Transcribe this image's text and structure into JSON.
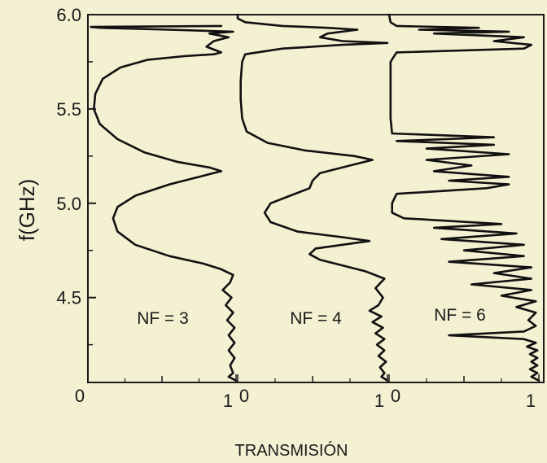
{
  "chart_data": {
    "type": "line",
    "ylabel": "f(GHz)",
    "xlabel": "TRANSMISIÓN",
    "ylim": [
      4.05,
      6.0
    ],
    "yticks": [
      {
        "value": 4.5,
        "label": "4.5"
      },
      {
        "value": 5.0,
        "label": "5.0"
      },
      {
        "value": 5.5,
        "label": "5.5"
      },
      {
        "value": 6.0,
        "label": "6.0"
      }
    ],
    "grid": false,
    "colors": {
      "background": "#f4f0d2",
      "line": "#111111"
    },
    "panels": [
      {
        "label": "NF = 3",
        "xlim": [
          0,
          1
        ],
        "xtick_labels": [
          "0",
          "1"
        ],
        "series": [
          {
            "points": [
              [
                1.0,
                4.06
              ],
              [
                0.95,
                4.08
              ],
              [
                0.98,
                4.1
              ],
              [
                0.96,
                4.14
              ],
              [
                0.99,
                4.18
              ],
              [
                0.95,
                4.22
              ],
              [
                0.99,
                4.26
              ],
              [
                0.95,
                4.3
              ],
              [
                0.99,
                4.34
              ],
              [
                0.94,
                4.38
              ],
              [
                0.98,
                4.42
              ],
              [
                0.93,
                4.46
              ],
              [
                0.97,
                4.5
              ],
              [
                0.91,
                4.54
              ],
              [
                0.96,
                4.58
              ],
              [
                0.98,
                4.62
              ],
              [
                0.9,
                4.65
              ],
              [
                0.78,
                4.68
              ],
              [
                0.55,
                4.72
              ],
              [
                0.32,
                4.78
              ],
              [
                0.2,
                4.85
              ],
              [
                0.17,
                4.92
              ],
              [
                0.2,
                4.98
              ],
              [
                0.32,
                5.04
              ],
              [
                0.55,
                5.1
              ],
              [
                0.8,
                5.15
              ],
              [
                0.9,
                5.17
              ],
              [
                0.82,
                5.19
              ],
              [
                0.6,
                5.22
              ],
              [
                0.38,
                5.27
              ],
              [
                0.2,
                5.34
              ],
              [
                0.08,
                5.42
              ],
              [
                0.04,
                5.5
              ],
              [
                0.05,
                5.58
              ],
              [
                0.1,
                5.66
              ],
              [
                0.22,
                5.72
              ],
              [
                0.4,
                5.76
              ],
              [
                0.65,
                5.78
              ],
              [
                0.85,
                5.79
              ],
              [
                0.9,
                5.8
              ],
              [
                0.8,
                5.83
              ],
              [
                0.85,
                5.86
              ],
              [
                0.95,
                5.88
              ],
              [
                0.82,
                5.9
              ],
              [
                0.98,
                5.91
              ],
              [
                0.55,
                5.92
              ],
              [
                0.08,
                5.93
              ],
              [
                0.02,
                5.935
              ],
              [
                0.9,
                5.94
              ]
            ]
          }
        ]
      },
      {
        "label": "NF = 4",
        "xlim": [
          0,
          1
        ],
        "xtick_labels": [
          "0",
          "1"
        ],
        "series": [
          {
            "points": [
              [
                1.0,
                4.06
              ],
              [
                0.96,
                4.08
              ],
              [
                0.98,
                4.1
              ],
              [
                0.95,
                4.13
              ],
              [
                0.99,
                4.16
              ],
              [
                0.94,
                4.19
              ],
              [
                0.98,
                4.22
              ],
              [
                0.93,
                4.25
              ],
              [
                0.98,
                4.28
              ],
              [
                0.92,
                4.31
              ],
              [
                0.97,
                4.34
              ],
              [
                0.9,
                4.37
              ],
              [
                0.96,
                4.4
              ],
              [
                0.88,
                4.43
              ],
              [
                0.94,
                4.46
              ],
              [
                0.97,
                4.5
              ],
              [
                0.92,
                4.55
              ],
              [
                0.98,
                4.6
              ],
              [
                0.85,
                4.64
              ],
              [
                0.7,
                4.67
              ],
              [
                0.55,
                4.7
              ],
              [
                0.48,
                4.73
              ],
              [
                0.52,
                4.76
              ],
              [
                0.7,
                4.78
              ],
              [
                0.88,
                4.8
              ],
              [
                0.7,
                4.82
              ],
              [
                0.4,
                4.85
              ],
              [
                0.22,
                4.9
              ],
              [
                0.18,
                4.95
              ],
              [
                0.22,
                5.0
              ],
              [
                0.35,
                5.04
              ],
              [
                0.48,
                5.08
              ],
              [
                0.5,
                5.12
              ],
              [
                0.55,
                5.16
              ],
              [
                0.75,
                5.2
              ],
              [
                0.9,
                5.23
              ],
              [
                0.78,
                5.25
              ],
              [
                0.45,
                5.28
              ],
              [
                0.2,
                5.32
              ],
              [
                0.06,
                5.38
              ],
              [
                0.03,
                5.45
              ],
              [
                0.02,
                5.55
              ],
              [
                0.02,
                5.65
              ],
              [
                0.03,
                5.75
              ],
              [
                0.05,
                5.79
              ],
              [
                0.3,
                5.82
              ],
              [
                0.7,
                5.84
              ],
              [
                1.0,
                5.85
              ],
              [
                0.7,
                5.86
              ],
              [
                0.55,
                5.88
              ],
              [
                0.6,
                5.9
              ],
              [
                0.8,
                5.92
              ],
              [
                0.6,
                5.93
              ],
              [
                0.3,
                5.94
              ],
              [
                0.05,
                5.96
              ],
              [
                0.0,
                5.98
              ],
              [
                0.0,
                6.0
              ]
            ]
          }
        ]
      },
      {
        "label": "NF = 6",
        "xlim": [
          0,
          1
        ],
        "xtick_labels": [
          "0",
          "1"
        ],
        "series": [
          {
            "points": [
              [
                1.0,
                4.06
              ],
              [
                0.95,
                4.08
              ],
              [
                0.99,
                4.1
              ],
              [
                0.94,
                4.12
              ],
              [
                0.99,
                4.14
              ],
              [
                0.95,
                4.16
              ],
              [
                0.99,
                4.18
              ],
              [
                0.94,
                4.2
              ],
              [
                0.99,
                4.22
              ],
              [
                0.92,
                4.24
              ],
              [
                0.98,
                4.26
              ],
              [
                0.9,
                4.28
              ],
              [
                0.4,
                4.3
              ],
              [
                0.9,
                4.32
              ],
              [
                0.98,
                4.35
              ],
              [
                0.93,
                4.38
              ],
              [
                0.98,
                4.42
              ],
              [
                0.85,
                4.45
              ],
              [
                0.98,
                4.48
              ],
              [
                0.75,
                4.51
              ],
              [
                0.95,
                4.54
              ],
              [
                0.55,
                4.57
              ],
              [
                0.95,
                4.6
              ],
              [
                0.7,
                4.63
              ],
              [
                0.95,
                4.66
              ],
              [
                0.4,
                4.69
              ],
              [
                0.9,
                4.72
              ],
              [
                0.5,
                4.75
              ],
              [
                0.9,
                4.78
              ],
              [
                0.35,
                4.81
              ],
              [
                0.85,
                4.84
              ],
              [
                0.3,
                4.87
              ],
              [
                0.75,
                4.89
              ],
              [
                0.1,
                4.92
              ],
              [
                0.02,
                4.95
              ],
              [
                0.02,
                5.0
              ],
              [
                0.05,
                5.05
              ],
              [
                0.65,
                5.08
              ],
              [
                0.8,
                5.1
              ],
              [
                0.4,
                5.12
              ],
              [
                0.8,
                5.14
              ],
              [
                0.3,
                5.17
              ],
              [
                0.55,
                5.2
              ],
              [
                0.25,
                5.23
              ],
              [
                0.8,
                5.26
              ],
              [
                0.25,
                5.29
              ],
              [
                0.7,
                5.31
              ],
              [
                0.05,
                5.33
              ],
              [
                0.7,
                5.35
              ],
              [
                0.02,
                5.37
              ],
              [
                0.01,
                5.45
              ],
              [
                0.01,
                5.6
              ],
              [
                0.01,
                5.75
              ],
              [
                0.05,
                5.8
              ],
              [
                0.9,
                5.82
              ],
              [
                0.95,
                5.84
              ],
              [
                0.7,
                5.86
              ],
              [
                0.9,
                5.88
              ],
              [
                0.3,
                5.9
              ],
              [
                0.8,
                5.91
              ],
              [
                0.2,
                5.92
              ],
              [
                0.6,
                5.93
              ],
              [
                0.05,
                5.94
              ],
              [
                0.01,
                5.96
              ],
              [
                0.0,
                6.0
              ]
            ]
          }
        ]
      }
    ]
  }
}
